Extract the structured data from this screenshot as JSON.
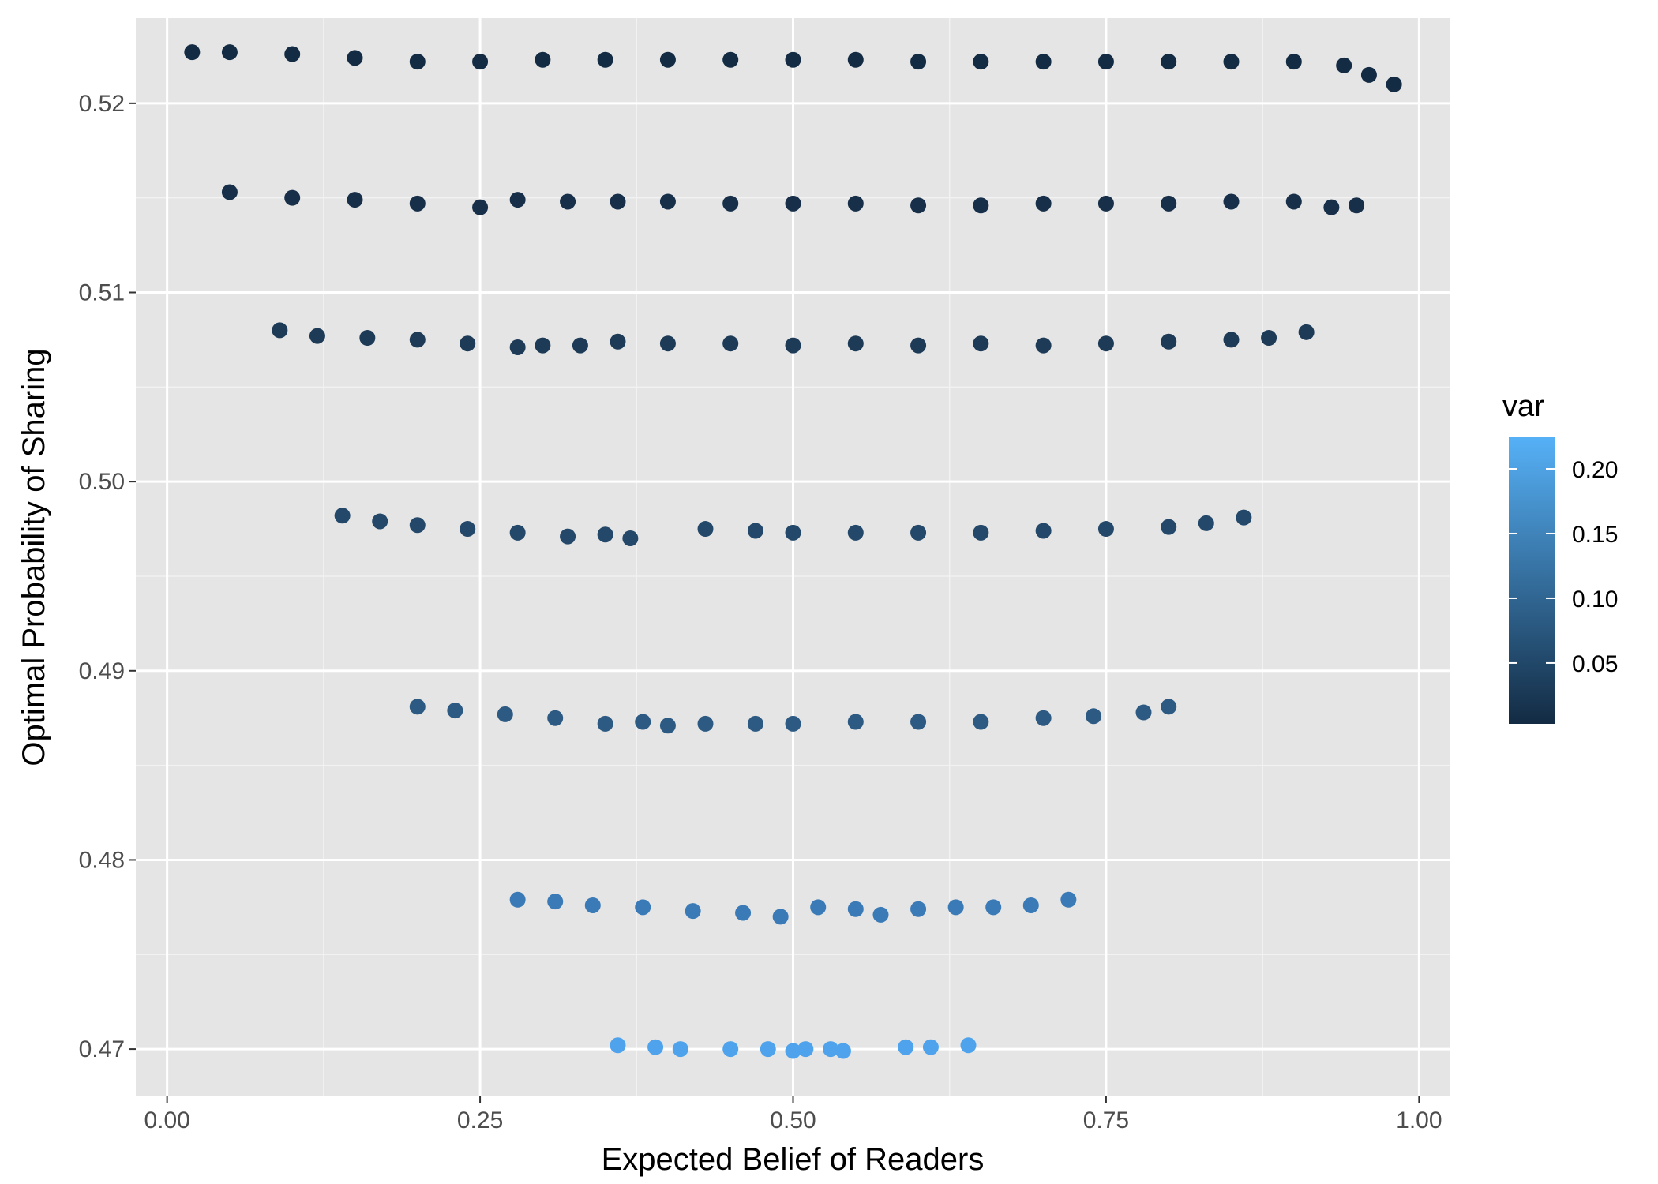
{
  "chart_data": {
    "type": "scatter",
    "title": "",
    "xlabel": "Expected Belief of Readers",
    "ylabel": "Optimal Probability of Sharing",
    "xlim": [
      -0.025,
      1.025
    ],
    "ylim": [
      0.4675,
      0.5245
    ],
    "x_ticks": [
      0.0,
      0.25,
      0.5,
      0.75,
      1.0
    ],
    "x_tick_labels": [
      "0.00",
      "0.25",
      "0.50",
      "0.75",
      "1.00"
    ],
    "y_ticks": [
      0.47,
      0.48,
      0.49,
      0.5,
      0.51,
      0.52
    ],
    "y_tick_labels": [
      "0.47",
      "0.48",
      "0.49",
      "0.50",
      "0.51",
      "0.52"
    ],
    "grid": true,
    "legend": {
      "title": "var",
      "placement": "right",
      "type": "colorbar",
      "range": [
        0.003,
        0.225
      ],
      "ticks": [
        0.05,
        0.1,
        0.15,
        0.2
      ],
      "tick_labels": [
        "0.05",
        "0.10",
        "0.15",
        "0.20"
      ],
      "colors": [
        "#132B43",
        "#56B1F7"
      ]
    },
    "series": [
      {
        "var": 0.01,
        "color": "#132B43",
        "points": [
          [
            0.02,
            0.5227
          ],
          [
            0.05,
            0.5227
          ],
          [
            0.1,
            0.5226
          ],
          [
            0.15,
            0.5224
          ],
          [
            0.2,
            0.5222
          ],
          [
            0.25,
            0.5222
          ],
          [
            0.3,
            0.5223
          ],
          [
            0.35,
            0.5223
          ],
          [
            0.4,
            0.5223
          ],
          [
            0.45,
            0.5223
          ],
          [
            0.5,
            0.5223
          ],
          [
            0.55,
            0.5223
          ],
          [
            0.6,
            0.5222
          ],
          [
            0.65,
            0.5222
          ],
          [
            0.7,
            0.5222
          ],
          [
            0.75,
            0.5222
          ],
          [
            0.8,
            0.5222
          ],
          [
            0.85,
            0.5222
          ],
          [
            0.9,
            0.5222
          ],
          [
            0.94,
            0.522
          ],
          [
            0.96,
            0.5215
          ],
          [
            0.98,
            0.521
          ]
        ]
      },
      {
        "var": 0.04,
        "color": "#172F49",
        "points": [
          [
            0.05,
            0.5153
          ],
          [
            0.1,
            0.515
          ],
          [
            0.15,
            0.5149
          ],
          [
            0.2,
            0.5147
          ],
          [
            0.25,
            0.5145
          ],
          [
            0.28,
            0.5149
          ],
          [
            0.32,
            0.5148
          ],
          [
            0.36,
            0.5148
          ],
          [
            0.4,
            0.5148
          ],
          [
            0.45,
            0.5147
          ],
          [
            0.5,
            0.5147
          ],
          [
            0.55,
            0.5147
          ],
          [
            0.6,
            0.5146
          ],
          [
            0.65,
            0.5146
          ],
          [
            0.7,
            0.5147
          ],
          [
            0.75,
            0.5147
          ],
          [
            0.8,
            0.5147
          ],
          [
            0.85,
            0.5148
          ],
          [
            0.9,
            0.5148
          ],
          [
            0.93,
            0.5145
          ],
          [
            0.95,
            0.5146
          ]
        ]
      },
      {
        "var": 0.07,
        "color": "#1D3A56",
        "points": [
          [
            0.09,
            0.508
          ],
          [
            0.12,
            0.5077
          ],
          [
            0.16,
            0.5076
          ],
          [
            0.2,
            0.5075
          ],
          [
            0.24,
            0.5073
          ],
          [
            0.28,
            0.5071
          ],
          [
            0.3,
            0.5072
          ],
          [
            0.33,
            0.5072
          ],
          [
            0.36,
            0.5074
          ],
          [
            0.4,
            0.5073
          ],
          [
            0.45,
            0.5073
          ],
          [
            0.5,
            0.5072
          ],
          [
            0.55,
            0.5073
          ],
          [
            0.6,
            0.5072
          ],
          [
            0.65,
            0.5073
          ],
          [
            0.7,
            0.5072
          ],
          [
            0.75,
            0.5073
          ],
          [
            0.8,
            0.5074
          ],
          [
            0.85,
            0.5075
          ],
          [
            0.88,
            0.5076
          ],
          [
            0.91,
            0.5079
          ]
        ]
      },
      {
        "var": 0.1,
        "color": "#244869",
        "points": [
          [
            0.14,
            0.4982
          ],
          [
            0.17,
            0.4979
          ],
          [
            0.2,
            0.4977
          ],
          [
            0.24,
            0.4975
          ],
          [
            0.28,
            0.4973
          ],
          [
            0.32,
            0.4971
          ],
          [
            0.35,
            0.4972
          ],
          [
            0.37,
            0.497
          ],
          [
            0.43,
            0.4975
          ],
          [
            0.47,
            0.4974
          ],
          [
            0.5,
            0.4973
          ],
          [
            0.55,
            0.4973
          ],
          [
            0.6,
            0.4973
          ],
          [
            0.65,
            0.4973
          ],
          [
            0.7,
            0.4974
          ],
          [
            0.75,
            0.4975
          ],
          [
            0.8,
            0.4976
          ],
          [
            0.83,
            0.4978
          ],
          [
            0.86,
            0.4981
          ]
        ]
      },
      {
        "var": 0.13,
        "color": "#2D5A83",
        "points": [
          [
            0.2,
            0.4881
          ],
          [
            0.23,
            0.4879
          ],
          [
            0.27,
            0.4877
          ],
          [
            0.31,
            0.4875
          ],
          [
            0.35,
            0.4872
          ],
          [
            0.38,
            0.4873
          ],
          [
            0.4,
            0.4871
          ],
          [
            0.43,
            0.4872
          ],
          [
            0.47,
            0.4872
          ],
          [
            0.5,
            0.4872
          ],
          [
            0.55,
            0.4873
          ],
          [
            0.6,
            0.4873
          ],
          [
            0.65,
            0.4873
          ],
          [
            0.7,
            0.4875
          ],
          [
            0.74,
            0.4876
          ],
          [
            0.78,
            0.4878
          ],
          [
            0.8,
            0.4881
          ]
        ]
      },
      {
        "var": 0.17,
        "color": "#3A7AB7",
        "points": [
          [
            0.28,
            0.4779
          ],
          [
            0.31,
            0.4778
          ],
          [
            0.34,
            0.4776
          ],
          [
            0.38,
            0.4775
          ],
          [
            0.42,
            0.4773
          ],
          [
            0.46,
            0.4772
          ],
          [
            0.49,
            0.477
          ],
          [
            0.52,
            0.4775
          ],
          [
            0.55,
            0.4774
          ],
          [
            0.57,
            0.4771
          ],
          [
            0.6,
            0.4774
          ],
          [
            0.63,
            0.4775
          ],
          [
            0.66,
            0.4775
          ],
          [
            0.69,
            0.4776
          ],
          [
            0.72,
            0.4779
          ]
        ]
      },
      {
        "var": 0.22,
        "color": "#4FA3EC",
        "points": [
          [
            0.36,
            0.4702
          ],
          [
            0.39,
            0.4701
          ],
          [
            0.41,
            0.47
          ],
          [
            0.45,
            0.47
          ],
          [
            0.48,
            0.47
          ],
          [
            0.5,
            0.4699
          ],
          [
            0.51,
            0.47
          ],
          [
            0.53,
            0.47
          ],
          [
            0.54,
            0.4699
          ],
          [
            0.59,
            0.4701
          ],
          [
            0.61,
            0.4701
          ],
          [
            0.64,
            0.4702
          ]
        ]
      }
    ]
  }
}
